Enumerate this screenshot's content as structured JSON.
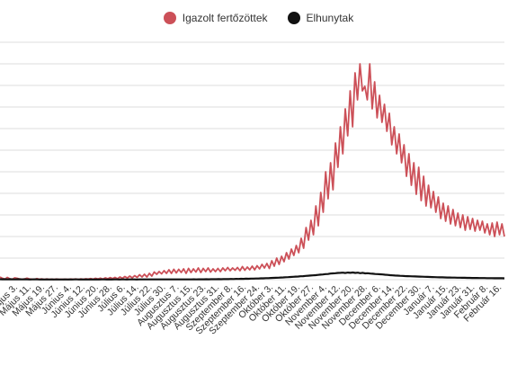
{
  "chart_data": {
    "type": "line",
    "title": "",
    "xlabel": "",
    "ylabel": "",
    "grid": true,
    "legend_position": "top-center",
    "x_tick_labels": [
      "Május 3.",
      "Május 11.",
      "Május 19.",
      "Május 27.",
      "Június 4.",
      "Június 12.",
      "Június 20.",
      "Június 28.",
      "Július 6.",
      "Július 14.",
      "Július 22.",
      "Július 30.",
      "Augusztus 7.",
      "Augusztus 15.",
      "Augusztus 23.",
      "Augusztus 31.",
      "Szeptember 8.",
      "Szeptember 16.",
      "Szeptember 24.",
      "Október 3.",
      "Október 11.",
      "Október 19.",
      "Október 27.",
      "November 4.",
      "November 12.",
      "November 20.",
      "November 28.",
      "December 6.",
      "December 14.",
      "December 22.",
      "December 30.",
      "Január 7.",
      "Január 15.",
      "Január 23.",
      "Január 31.",
      "Február 8.",
      "Február 16."
    ],
    "series": [
      {
        "name": "Igazolt fertőzöttek",
        "color": "#cc5058",
        "values": [
          3,
          1.5,
          0.5,
          2.5,
          1,
          0.5,
          2,
          1.5,
          0.8,
          0.5,
          0.8,
          1.6,
          0.9,
          0.6,
          0.3,
          1.2,
          0.5,
          0.9,
          0.3,
          0.8,
          0.4,
          0.6,
          0.2,
          0.7,
          0.4,
          0.5,
          0.3,
          0.6,
          0.2,
          0.7,
          0.4,
          0.8,
          0.3,
          0.9,
          0.4,
          1.0,
          0.6,
          1.2,
          0.5,
          1.5,
          0.8,
          1.7,
          0.7,
          2,
          1,
          2.3,
          1.2,
          2.5,
          1,
          3,
          1.5,
          3.5,
          1.8,
          4,
          2,
          4.5,
          2.5,
          5.5,
          3,
          6,
          3,
          7,
          4,
          8.5,
          6,
          9,
          6.5,
          10,
          7,
          11,
          7,
          11.5,
          7.5,
          11.5,
          8,
          12,
          7,
          12.5,
          8,
          12,
          8.5,
          13,
          8,
          12.5,
          9,
          13,
          8.5,
          12,
          9,
          12.5,
          9,
          13,
          10,
          13.5,
          10,
          13,
          10.5,
          13.5,
          10,
          14.5,
          10.5,
          14,
          11,
          15,
          11,
          15.5,
          12,
          17,
          13,
          18,
          12.5,
          21,
          15,
          24,
          17,
          26,
          20,
          30,
          23,
          34,
          27,
          38,
          30,
          46,
          35,
          58,
          44,
          66,
          50,
          82,
          60,
          97,
          75,
          120,
          90,
          130,
          100,
          152,
          125,
          170,
          140,
          190,
          160,
          210,
          170,
          230,
          200,
          240,
          210,
          215,
          200,
          240,
          190,
          220,
          180,
          205,
          175,
          195,
          165,
          185,
          150,
          170,
          140,
          162,
          130,
          150,
          115,
          140,
          105,
          130,
          95,
          125,
          88,
          115,
          82,
          105,
          80,
          98,
          75,
          92,
          68,
          85,
          65,
          82,
          62,
          78,
          60,
          74,
          58,
          72,
          55,
          70,
          56,
          68,
          54,
          66,
          55,
          65,
          52,
          62,
          50,
          63,
          48,
          64,
          50,
          62,
          48
        ]
      },
      {
        "name": "Elhunytak",
        "color": "#111111",
        "values": [
          0.5,
          0.4,
          0.5,
          0.3,
          0.5,
          0.4,
          0.3,
          0.5,
          0.4,
          0.3,
          0.4,
          0.3,
          0.2,
          0.3,
          0.4,
          0.3,
          0.2,
          0.3,
          0.2,
          0.3,
          0.2,
          0.3,
          0.2,
          0.3,
          0.2,
          0.2,
          0.3,
          0.2,
          0.3,
          0.2,
          0.3,
          0.3,
          0.2,
          0.3,
          0.2,
          0.3,
          0.2,
          0.3,
          0.2,
          0.3,
          0.2,
          0.3,
          0.3,
          0.2,
          0.3,
          0.2,
          0.3,
          0.3,
          0.2,
          0.3,
          0.3,
          0.2,
          0.3,
          0.3,
          0.3,
          0.2,
          0.3,
          0.3,
          0.3,
          0.3,
          0.3,
          0.3,
          0.3,
          0.3,
          0.3,
          0.3,
          0.3,
          0.3,
          0.3,
          0.3,
          0.3,
          0.3,
          0.3,
          0.3,
          0.3,
          0.3,
          0.3,
          0.3,
          0.4,
          0.3,
          0.4,
          0.4,
          0.4,
          0.5,
          0.4,
          0.5,
          0.5,
          0.5,
          0.6,
          0.5,
          0.6,
          0.7,
          0.6,
          0.8,
          0.7,
          0.9,
          0.8,
          1.0,
          0.9,
          1.1,
          1.0,
          1.2,
          1.2,
          1.3,
          1.3,
          1.5,
          1.5,
          1.7,
          1.7,
          1.9,
          2.0,
          2.1,
          2.2,
          2.4,
          2.5,
          2.7,
          2.8,
          3.0,
          3.2,
          3.4,
          3.5,
          3.8,
          3.9,
          4.2,
          4.4,
          4.6,
          4.8,
          5.0,
          5.3,
          5.6,
          5.8,
          6.2,
          6.3,
          6.8,
          7.0,
          7.2,
          7.5,
          7.6,
          7.8,
          7.4,
          7.9,
          7.6,
          8.0,
          7.5,
          7.8,
          7.2,
          7.6,
          7.0,
          7.2,
          6.8,
          6.6,
          6.3,
          6.2,
          6.0,
          5.8,
          5.5,
          5.3,
          5.0,
          4.8,
          4.6,
          4.5,
          4.3,
          4.2,
          4.0,
          3.9,
          3.8,
          3.7,
          3.6,
          3.5,
          3.4,
          3.3,
          3.2,
          3.1,
          3.0,
          2.9,
          2.8,
          2.7,
          2.6,
          2.6,
          2.5,
          2.4,
          2.4,
          2.3,
          2.3,
          2.2,
          2.2,
          2.1,
          2.1,
          2.0,
          2.0,
          1.9,
          1.9,
          1.9,
          1.8,
          1.8,
          1.8,
          1.7,
          1.7,
          1.7,
          1.6,
          1.6,
          1.6,
          1.6,
          1.5
        ]
      }
    ]
  }
}
